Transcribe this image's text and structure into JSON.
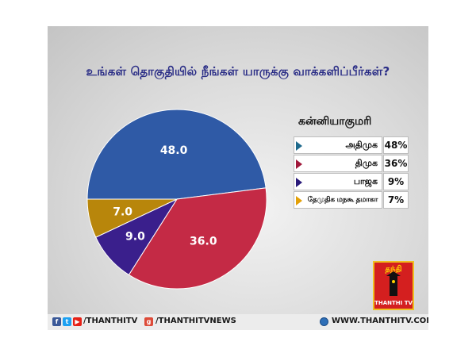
{
  "title": "உங்கள் தொகுதியில் நீங்கள் யாருக்கு வாக்களிப்பீர்கள்?",
  "chart_data": {
    "type": "pie",
    "title": "உங்கள் தொகுதியில் நீங்கள் யாருக்கு வாக்களிப்பீர்கள்?",
    "legend_heading": "கன்னியாகுமரி",
    "legend_position": "right",
    "slices": [
      {
        "name": "அதிமுக",
        "value": 48.0,
        "label": "48.0",
        "percent_text": "48%",
        "color": "#2f5aa6"
      },
      {
        "name": "திமுக",
        "value": 36.0,
        "label": "36.0",
        "percent_text": "36%",
        "color": "#c42a45"
      },
      {
        "name": "பாஜக",
        "value": 9.0,
        "label": "9.0",
        "percent_text": "9%",
        "color": "#3a1f8c"
      },
      {
        "name": "தேமுதிக மநகூ தமாகா",
        "value": 7.0,
        "label": "7.0",
        "percent_text": "7%",
        "color": "#b8860b"
      }
    ]
  },
  "legend_marker_colors": [
    "#1f6a8c",
    "#a0183a",
    "#2a1a7a",
    "#e3a008"
  ],
  "logo": {
    "top_text": "தந்தி",
    "bottom_text": "THANTHI TV"
  },
  "footer": {
    "social_icons": [
      "facebook-icon",
      "twitter-icon",
      "youtube-icon",
      "google-plus-icon"
    ],
    "handle_1": "/THANTHITV",
    "handle_2": "/THANTHITVNEWS",
    "website": "WWW.THANTHITV.COM",
    "globe_icon": "globe-icon"
  }
}
